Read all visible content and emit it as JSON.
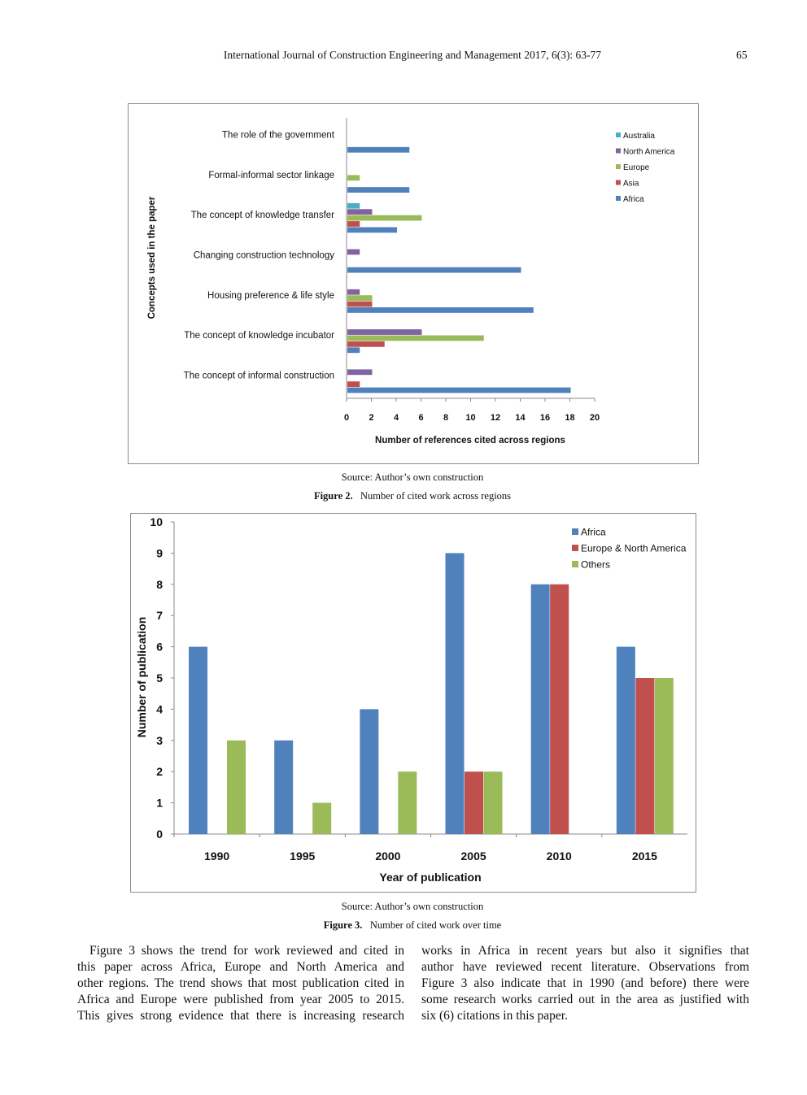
{
  "header": {
    "journal": "International Journal of Construction Engineering and Management 2017, 6(3): 63-77",
    "page_number": "65"
  },
  "figure2": {
    "source": "Source: Author’s own construction",
    "label": "Figure 2.",
    "caption": "Number of cited work across regions"
  },
  "figure3": {
    "source": "Source: Author’s own construction",
    "label": "Figure 3.",
    "caption": "Number of cited work over time"
  },
  "body_text": {
    "left": [
      "Figure 3 shows the trend for work reviewed and cited in",
      "this paper across Africa, Europe and North America and",
      "other regions. The trend shows that most publication cited in",
      "Africa and Europe were published from year 2005 to 2015.",
      "This gives strong evidence that there is increasing research"
    ],
    "right": [
      "works in Africa in recent years but also it signifies that",
      "author have reviewed recent literature. Observations from",
      "Figure 3 also indicate that in 1990 (and before) there were",
      "some research works carried out in the area as justified with",
      "six (6) citations in this paper."
    ]
  },
  "chart_data": [
    {
      "type": "bar",
      "orientation": "horizontal",
      "categories": [
        "The role of the government",
        "Formal-informal sector linkage",
        "The concept of knowledge transfer",
        "Changing construction technology",
        "Housing preference & life style",
        "The concept of knowledge incubator",
        "The concept of informal construction"
      ],
      "series": [
        {
          "name": "Africa",
          "color": "#4F81BD",
          "values": [
            5,
            5,
            4,
            14,
            15,
            1,
            18
          ]
        },
        {
          "name": "Asia",
          "color": "#C0504D",
          "values": [
            0,
            0,
            1,
            0,
            2,
            3,
            1
          ]
        },
        {
          "name": "Europe",
          "color": "#9BBB59",
          "values": [
            0,
            1,
            6,
            0,
            2,
            11,
            0
          ]
        },
        {
          "name": "North America",
          "color": "#8064A2",
          "values": [
            0,
            0,
            2,
            1,
            1,
            6,
            2
          ]
        },
        {
          "name": "Australia",
          "color": "#4BACC6",
          "values": [
            0,
            0,
            1,
            0,
            0,
            0,
            0
          ]
        }
      ],
      "legend_order": [
        "Australia",
        "North America",
        "Europe",
        "Asia",
        "Africa"
      ],
      "xlabel": "Number of references  cited across regions",
      "ylabel": "Concepts used in the paper",
      "xlim": [
        0,
        20
      ],
      "xticks": [
        "0",
        "2",
        "4",
        "6",
        "8",
        "10",
        "12",
        "14",
        "16",
        "18",
        "20"
      ],
      "grid": false,
      "legend": "top-right"
    },
    {
      "type": "bar",
      "categories": [
        "1990",
        "1995",
        "2000",
        "2005",
        "2010",
        "2015"
      ],
      "series": [
        {
          "name": "Africa",
          "color": "#4F81BD",
          "values": [
            6,
            3,
            4,
            9,
            8,
            6
          ]
        },
        {
          "name": "Europe & North America",
          "color": "#C0504D",
          "values": [
            0,
            0,
            0,
            2,
            8,
            5
          ]
        },
        {
          "name": "Others",
          "color": "#9BBB59",
          "values": [
            3,
            1,
            2,
            2,
            0,
            5
          ]
        }
      ],
      "xlabel": "Year of publication",
      "ylabel": "Number of publication",
      "ylim": [
        0,
        10
      ],
      "yticks": [
        "0",
        "1",
        "2",
        "3",
        "4",
        "5",
        "6",
        "7",
        "8",
        "9",
        "10"
      ],
      "grid": false,
      "legend": "top-right"
    }
  ]
}
